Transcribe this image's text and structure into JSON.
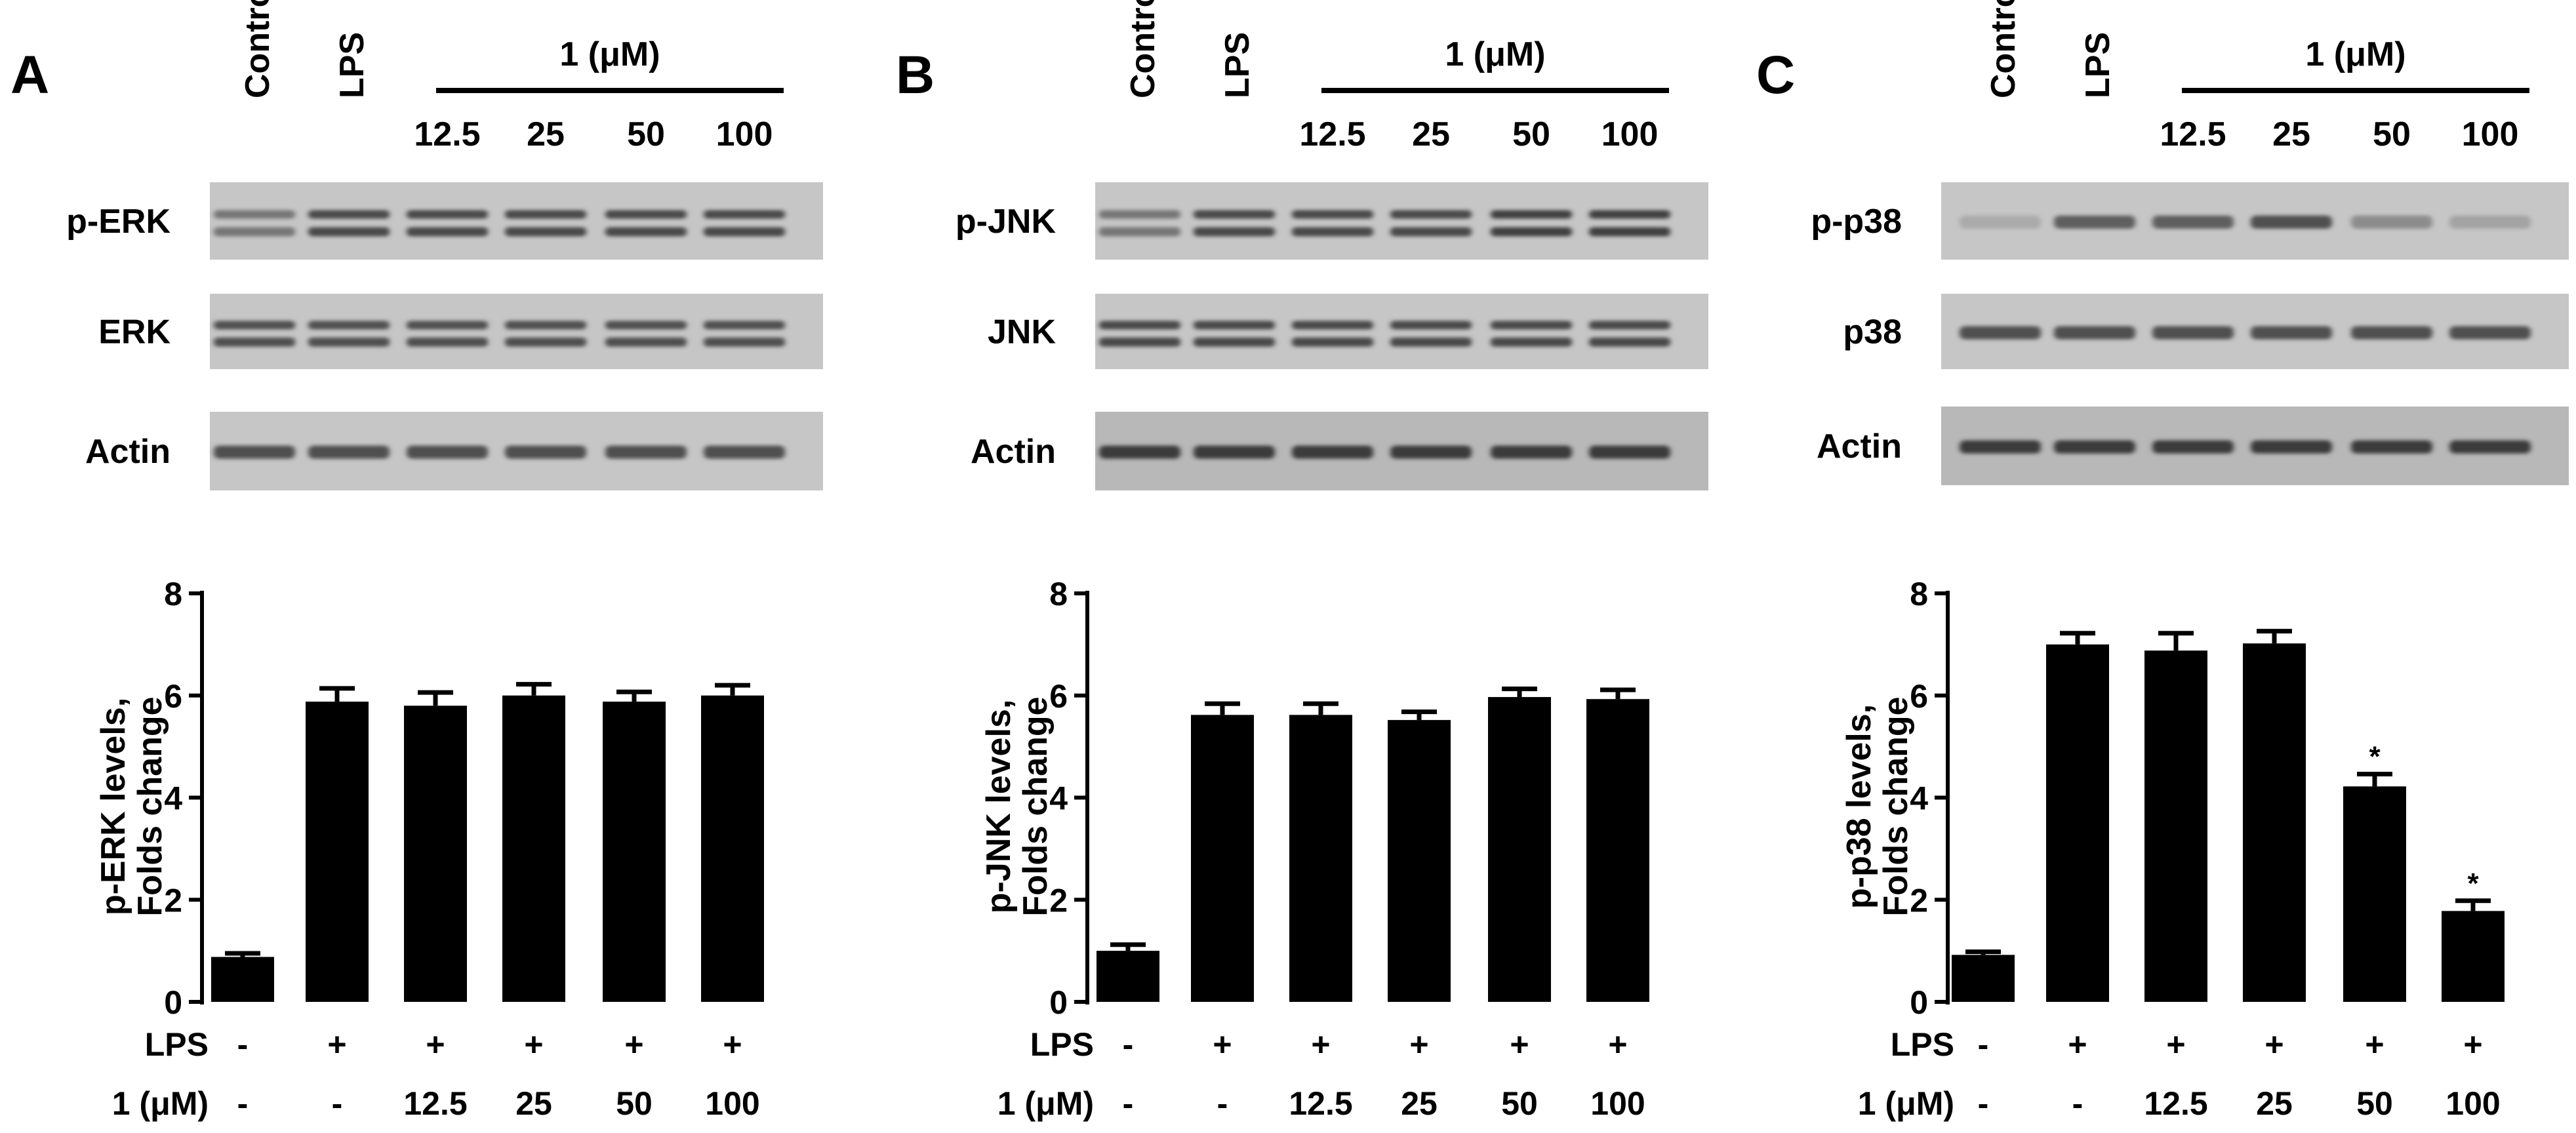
{
  "figure": {
    "panels": [
      {
        "letter": "A",
        "lane_labels": [
          "Control",
          "LPS"
        ],
        "dose_header": "1 (μM)",
        "doses": [
          "12.5",
          "25",
          "50",
          "100"
        ],
        "blots": [
          {
            "label": "p-ERK",
            "band_style": "double",
            "intensity": [
              0.55,
              0.85,
              0.85,
              0.85,
              0.85,
              0.85
            ]
          },
          {
            "label": "ERK",
            "band_style": "double",
            "intensity": [
              0.8,
              0.8,
              0.8,
              0.8,
              0.8,
              0.8
            ]
          },
          {
            "label": "Actin",
            "band_style": "single",
            "intensity": [
              0.8,
              0.8,
              0.8,
              0.8,
              0.8,
              0.8
            ]
          }
        ]
      },
      {
        "letter": "B",
        "lane_labels": [
          "Control",
          "LPS"
        ],
        "dose_header": "1 (μM)",
        "doses": [
          "12.5",
          "25",
          "50",
          "100"
        ],
        "blots": [
          {
            "label": "p-JNK",
            "band_style": "double",
            "intensity": [
              0.55,
              0.85,
              0.85,
              0.85,
              0.9,
              0.9
            ]
          },
          {
            "label": "JNK",
            "band_style": "double",
            "intensity": [
              0.85,
              0.85,
              0.85,
              0.85,
              0.85,
              0.85
            ]
          },
          {
            "label": "Actin",
            "band_style": "single",
            "intensity": [
              0.95,
              0.95,
              0.95,
              0.95,
              0.95,
              0.95
            ]
          }
        ]
      },
      {
        "letter": "C",
        "lane_labels": [
          "Control",
          "LPS"
        ],
        "dose_header": "1 (μM)",
        "doses": [
          "12.5",
          "25",
          "50",
          "100"
        ],
        "blots": [
          {
            "label": "p-p38",
            "band_style": "single",
            "intensity": [
              0.2,
              0.7,
              0.7,
              0.8,
              0.4,
              0.25
            ]
          },
          {
            "label": "p38",
            "band_style": "single",
            "intensity": [
              0.8,
              0.8,
              0.8,
              0.8,
              0.8,
              0.8
            ]
          },
          {
            "label": "Actin",
            "band_style": "single",
            "intensity": [
              0.95,
              0.95,
              0.95,
              0.95,
              0.95,
              0.95
            ]
          }
        ]
      }
    ]
  },
  "chart_data": [
    {
      "type": "bar",
      "title": "",
      "ylabel": [
        "p-ERK levels,",
        "Folds change"
      ],
      "ylim": [
        0,
        8
      ],
      "yticks": [
        "0",
        "2",
        "4",
        "6",
        "8"
      ],
      "row_labels": [
        "LPS",
        "1 (μM)"
      ],
      "categories": [
        [
          "-",
          "-"
        ],
        [
          "+",
          "-"
        ],
        [
          "+",
          "12.5"
        ],
        [
          "+",
          "25"
        ],
        [
          "+",
          "50"
        ],
        [
          "+",
          "100"
        ]
      ],
      "values": [
        0.88,
        5.88,
        5.8,
        6.0,
        5.88,
        6.0
      ],
      "errors": [
        0.07,
        0.26,
        0.26,
        0.22,
        0.19,
        0.2
      ],
      "annotations": [
        "",
        "",
        "",
        "",
        "",
        ""
      ]
    },
    {
      "type": "bar",
      "title": "",
      "ylabel": [
        "p-JNK levels,",
        "Folds change"
      ],
      "ylim": [
        0,
        8
      ],
      "yticks": [
        "0",
        "2",
        "4",
        "6",
        "8"
      ],
      "row_labels": [
        "LPS",
        "1 (μM)"
      ],
      "categories": [
        [
          "-",
          "-"
        ],
        [
          "+",
          "-"
        ],
        [
          "+",
          "12.5"
        ],
        [
          "+",
          "25"
        ],
        [
          "+",
          "50"
        ],
        [
          "+",
          "100"
        ]
      ],
      "values": [
        1.0,
        5.62,
        5.62,
        5.52,
        5.97,
        5.93
      ],
      "errors": [
        0.12,
        0.22,
        0.22,
        0.16,
        0.16,
        0.18
      ],
      "annotations": [
        "",
        "",
        "",
        "",
        "",
        ""
      ]
    },
    {
      "type": "bar",
      "title": "",
      "ylabel": [
        "p-p38 levels,",
        "Folds change"
      ],
      "ylim": [
        0,
        8
      ],
      "yticks": [
        "0",
        "2",
        "4",
        "6",
        "8"
      ],
      "row_labels": [
        "LPS",
        "1 (μM)"
      ],
      "categories": [
        [
          "-",
          "-"
        ],
        [
          "+",
          "-"
        ],
        [
          "+",
          "12.5"
        ],
        [
          "+",
          "25"
        ],
        [
          "+",
          "50"
        ],
        [
          "+",
          "100"
        ]
      ],
      "values": [
        0.92,
        7.0,
        6.88,
        7.02,
        4.22,
        1.78
      ],
      "errors": [
        0.06,
        0.22,
        0.34,
        0.24,
        0.24,
        0.2
      ],
      "annotations": [
        "",
        "",
        "",
        "",
        "*",
        "*"
      ]
    }
  ]
}
